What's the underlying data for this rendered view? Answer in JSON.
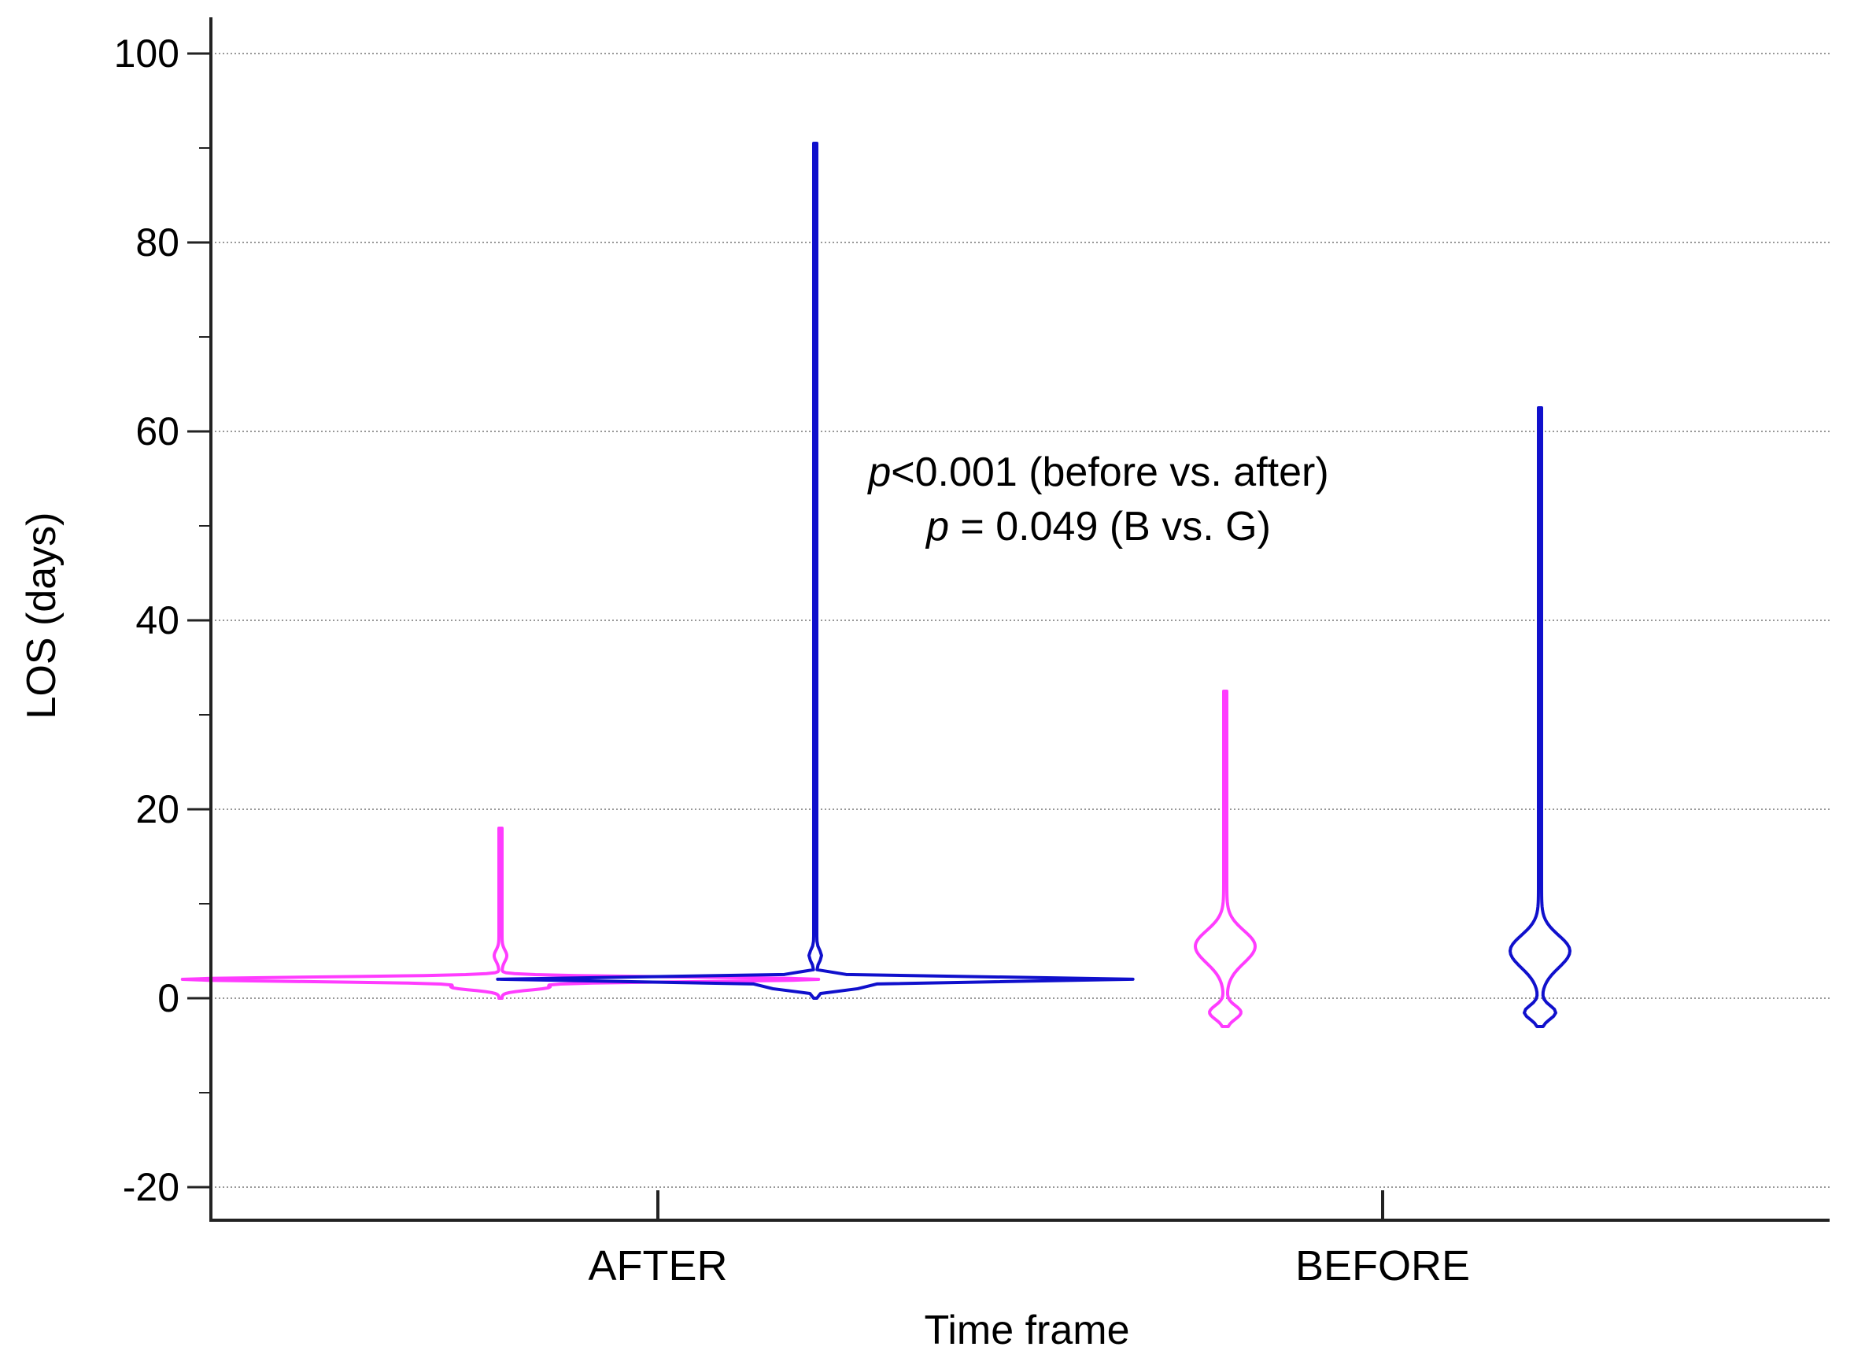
{
  "chart_data": {
    "type": "violin",
    "xlabel": "Time frame",
    "ylabel": "LOS (days)",
    "ylim": [
      -20,
      100
    ],
    "yticks": [
      -20,
      0,
      20,
      40,
      60,
      80,
      100
    ],
    "grid": true,
    "categories": [
      "AFTER",
      "BEFORE"
    ],
    "group_colors": {
      "B": "#ff3cff",
      "G": "#1010cc"
    },
    "violins": [
      {
        "category": "AFTER",
        "group": "B",
        "min": 0,
        "max": 18,
        "mode": 2,
        "peak_width": 0.39
      },
      {
        "category": "AFTER",
        "group": "G",
        "min": 0,
        "max": 90.5,
        "mode": 2,
        "peak_width": 0.39
      },
      {
        "category": "BEFORE",
        "group": "B",
        "min": -3,
        "max": 32.5,
        "mode": 5.5,
        "peak_width": 0.035
      },
      {
        "category": "BEFORE",
        "group": "G",
        "min": -3,
        "max": 62.5,
        "mode": 5,
        "peak_width": 0.035
      }
    ],
    "annotations": {
      "line1_p": "p",
      "line1_rest": "<0.001 (before vs. after)",
      "line2_p": "p",
      "line2_rest": " = 0.049 (B vs. G)"
    }
  }
}
